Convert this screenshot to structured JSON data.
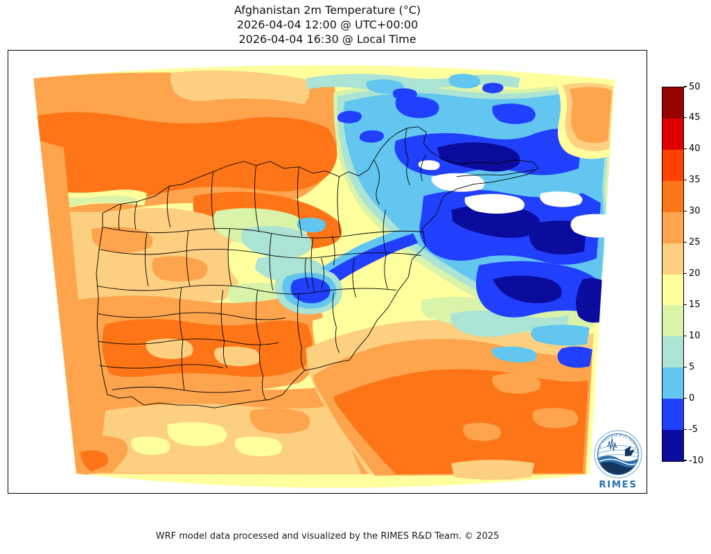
{
  "title": {
    "line1": "Afghanistan 2m Temperature (°C)",
    "line2": "2026-04-04 12:00 @ UTC+00:00",
    "line3": "2026-04-04 16:30 @ Local Time"
  },
  "footer": {
    "credit": "WRF model data processed and visualized by the RIMES R&D Team. © 2025"
  },
  "colorbar": {
    "units": "°C",
    "ticks": [
      50,
      45,
      40,
      35,
      30,
      25,
      20,
      15,
      10,
      5,
      0,
      -5,
      -10
    ],
    "segments": [
      {
        "label": "45 to 50",
        "color": "#990000"
      },
      {
        "label": "40 to 45",
        "color": "#e00000"
      },
      {
        "label": "35 to 40",
        "color": "#ff4203"
      },
      {
        "label": "30 to 35",
        "color": "#fd7517"
      },
      {
        "label": "25 to 30",
        "color": "#fda44d"
      },
      {
        "label": "20 to 25",
        "color": "#fdcf80"
      },
      {
        "label": "15 to 20",
        "color": "#ffff9e"
      },
      {
        "label": "10 to 15",
        "color": "#d9f3a9"
      },
      {
        "label": "5 to 10",
        "color": "#abe3d5"
      },
      {
        "label": "0 to 5",
        "color": "#62c6f0"
      },
      {
        "label": "-5 to 0",
        "color": "#2140fe"
      },
      {
        "label": "-10 to -5",
        "color": "#0b0b9d"
      }
    ]
  },
  "map": {
    "region": "Afghanistan and surroundings",
    "projection_shape": "curved WRF domain",
    "boundary_color": "#000000",
    "background": "#ffffff",
    "below_scale_color": "#ffffff"
  },
  "logo": {
    "name": "RIMES",
    "ring_text": "Regional Integrated Multi-Hazard Early Warning System",
    "text_color": "#2a6fad"
  },
  "chart_data": {
    "type": "heatmap",
    "title": "Afghanistan 2m Temperature (°C)",
    "valid_time_utc": "2026-04-04 12:00 @ UTC+00:00",
    "valid_time_local": "2026-04-04 16:30 @ Local Time",
    "variable": "2m Temperature",
    "units": "°C",
    "levels": [
      -10,
      -5,
      0,
      5,
      10,
      15,
      20,
      25,
      30,
      35,
      40,
      45,
      50
    ],
    "level_colors_low_to_high": [
      "#0b0b9d",
      "#2140fe",
      "#62c6f0",
      "#abe3d5",
      "#d9f3a9",
      "#ffff9e",
      "#fdcf80",
      "#fda44d",
      "#fd7517",
      "#ff4203",
      "#e00000",
      "#990000"
    ],
    "legend_position": "right",
    "coldest_areas": "northeast mountain ranges, below -10 °C shown as white patches",
    "warmest_areas": "southwest and southeast lowlands around 30-35 °C"
  }
}
